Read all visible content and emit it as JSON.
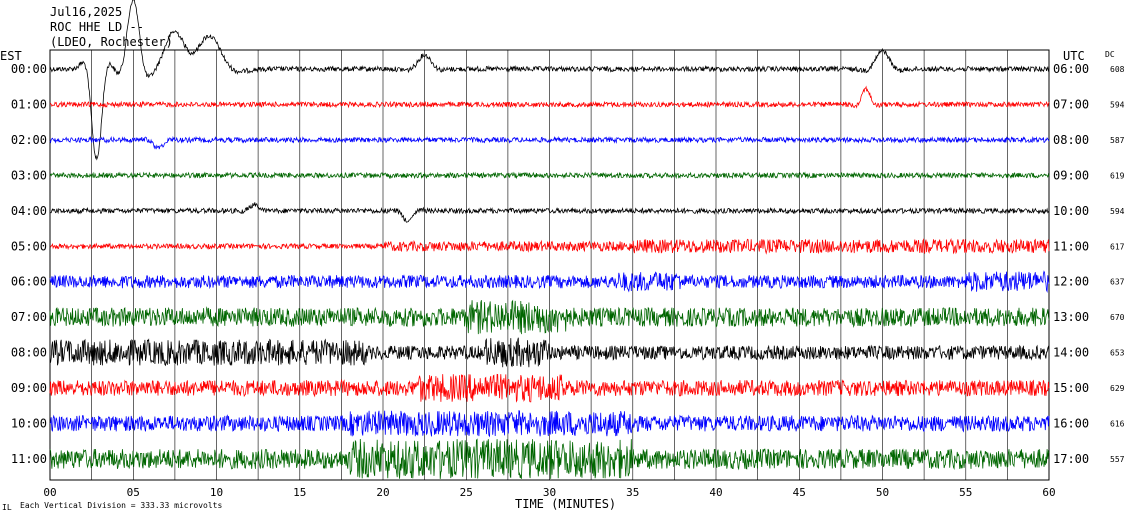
{
  "header": {
    "date": "Jul16,2025",
    "station": "ROC HHE LD --",
    "network": "(LDEO, Rochester)"
  },
  "left_axis_label": "EST",
  "right_axis_label": "UTC",
  "dc_label": "DC",
  "footer_note": "Each Vertical Division =  333.33 microvolts",
  "footer_mark": "IL",
  "chart_data": {
    "type": "line",
    "title": "Jul16,2025 ROC HHE LD -- (LDEO, Rochester)",
    "xlabel": "TIME (MINUTES)",
    "ylabel_left": "EST",
    "ylabel_right": "UTC",
    "xlim": [
      0,
      60
    ],
    "x_ticks": [
      "00",
      "05",
      "10",
      "15",
      "20",
      "25",
      "30",
      "35",
      "40",
      "45",
      "50",
      "55",
      "60"
    ],
    "grid_x_every_minutes": 2.5,
    "series_colors": [
      "#000000",
      "#ff0000",
      "#0000ff",
      "#006600"
    ],
    "rows": [
      {
        "est": "00:00",
        "utc": "06:00",
        "dc": "608",
        "color": "#000000"
      },
      {
        "est": "01:00",
        "utc": "07:00",
        "dc": "594",
        "color": "#ff0000"
      },
      {
        "est": "02:00",
        "utc": "08:00",
        "dc": "587",
        "color": "#0000ff"
      },
      {
        "est": "03:00",
        "utc": "09:00",
        "dc": "619",
        "color": "#006600"
      },
      {
        "est": "04:00",
        "utc": "10:00",
        "dc": "594",
        "color": "#000000"
      },
      {
        "est": "05:00",
        "utc": "11:00",
        "dc": "617",
        "color": "#ff0000"
      },
      {
        "est": "06:00",
        "utc": "12:00",
        "dc": "637",
        "color": "#0000ff"
      },
      {
        "est": "07:00",
        "utc": "13:00",
        "dc": "670",
        "color": "#006600"
      },
      {
        "est": "08:00",
        "utc": "14:00",
        "dc": "653",
        "color": "#000000"
      },
      {
        "est": "09:00",
        "utc": "15:00",
        "dc": "629",
        "color": "#ff0000"
      },
      {
        "est": "10:00",
        "utc": "16:00",
        "dc": "616",
        "color": "#0000ff"
      },
      {
        "est": "11:00",
        "utc": "17:00",
        "dc": "557",
        "color": "#006600"
      }
    ],
    "events": [
      {
        "row": 0,
        "minute": 2.8,
        "note": "large swing"
      },
      {
        "row": 0,
        "minute": 22.5
      },
      {
        "row": 0,
        "minute": 50
      },
      {
        "row": 1,
        "minute": 49
      },
      {
        "row": 2,
        "minute": 6.5
      },
      {
        "row": 4,
        "minute": 21.5
      },
      {
        "row": 11,
        "minute": 26
      }
    ]
  }
}
